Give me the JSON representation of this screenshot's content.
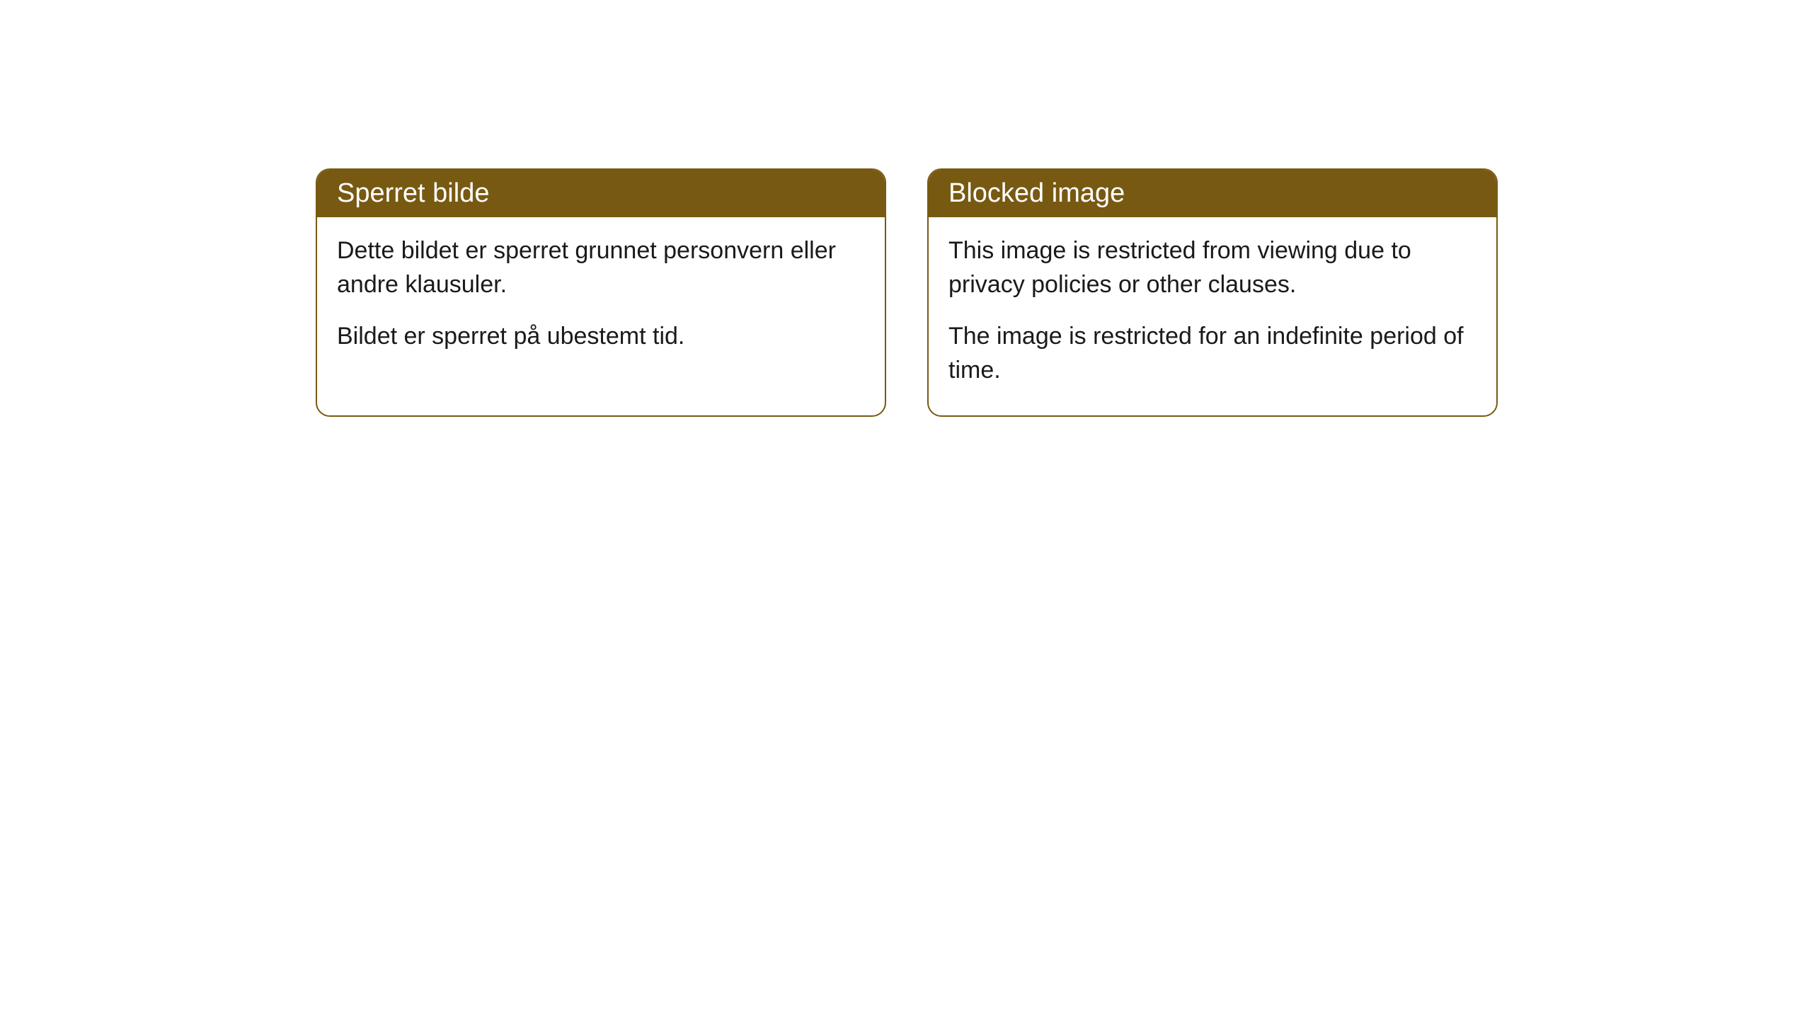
{
  "cards": [
    {
      "header": "Sperret bilde",
      "paragraph1": "Dette bildet er sperret grunnet personvern eller andre klausuler.",
      "paragraph2": "Bildet er sperret på ubestemt tid."
    },
    {
      "header": "Blocked image",
      "paragraph1": "This image is restricted from viewing due to privacy policies or other clauses.",
      "paragraph2": "The image is restricted for an indefinite period of time."
    }
  ],
  "styling": {
    "header_background_color": "#785912",
    "header_text_color": "#ffffff",
    "border_color": "#785912",
    "body_background_color": "#ffffff",
    "body_text_color": "#1a1a1a",
    "border_radius": 20,
    "header_fontsize": 38,
    "body_fontsize": 34
  }
}
